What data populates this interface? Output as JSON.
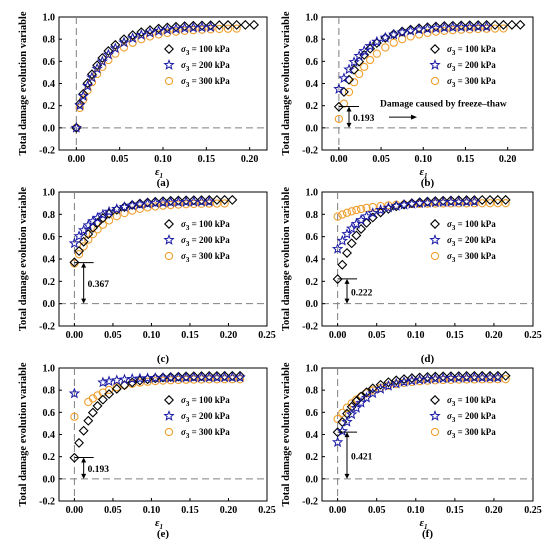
{
  "colors": {
    "s100": "#000000",
    "s200": "#1a1aa6",
    "s300": "#f0a030",
    "axis": "#000000",
    "dash": "#808080"
  },
  "chart_data": [
    {
      "type": "scatter",
      "panel_label": "(a)",
      "xlabel": "ε1",
      "ylabel": "Total damage evolution variable",
      "xlim": [
        -0.02,
        0.22
      ],
      "ylim": [
        -0.2,
        1.0
      ],
      "xticks": [
        "0.00",
        "0.05",
        "0.10",
        "0.15",
        "0.20"
      ],
      "yticks": [
        "-0.2",
        "0.0",
        "0.2",
        "0.4",
        "0.6",
        "0.8",
        "1.0"
      ],
      "legend": [
        "σ3 = 100 kPa",
        "σ3 = 200 kPa",
        "σ3 = 300 kPa"
      ],
      "legend_position": "center-right",
      "annotation": null,
      "series": [
        {
          "name": "σ3 = 100 kPa",
          "marker": "diamond",
          "start": 0.0,
          "x": [
            0,
            0.004,
            0.008,
            0.013,
            0.018,
            0.024,
            0.03,
            0.037,
            0.045,
            0.055,
            0.065,
            0.075,
            0.085,
            0.095,
            0.105,
            0.115,
            0.125,
            0.135,
            0.145,
            0.155,
            0.165,
            0.175,
            0.185,
            0.195,
            0.205
          ]
        },
        {
          "name": "σ3 = 200 kPa",
          "marker": "star",
          "start": 0.0,
          "x": [
            0,
            0.004,
            0.008,
            0.013,
            0.018,
            0.024,
            0.03,
            0.037,
            0.045,
            0.055,
            0.065,
            0.075,
            0.085,
            0.095,
            0.105,
            0.115,
            0.125,
            0.135,
            0.145,
            0.155
          ]
        },
        {
          "name": "σ3 = 300 kPa",
          "marker": "circle",
          "start": 0.0,
          "x": [
            0,
            0.004,
            0.008,
            0.013,
            0.018,
            0.024,
            0.03,
            0.037,
            0.045,
            0.055,
            0.065,
            0.075,
            0.085,
            0.095,
            0.105,
            0.115,
            0.125,
            0.135,
            0.145,
            0.155,
            0.165,
            0.175,
            0.185
          ]
        }
      ]
    },
    {
      "type": "scatter",
      "panel_label": "(b)",
      "xlabel": "ε1",
      "ylabel": "Total damage evolution variable",
      "xlim": [
        -0.02,
        0.23
      ],
      "ylim": [
        -0.2,
        1.0
      ],
      "xticks": [
        "0.00",
        "0.05",
        "0.10",
        "0.15",
        "0.20"
      ],
      "yticks": [
        "-0.2",
        "0.0",
        "0.2",
        "0.4",
        "0.6",
        "0.8",
        "1.0"
      ],
      "legend": [
        "σ3 = 100 kPa",
        "σ3 = 200 kPa",
        "σ3 = 300 kPa"
      ],
      "legend_position": "center-right",
      "annotation": {
        "value_label": "0.193",
        "text": "Damage caused by freeze–thaw"
      },
      "series": [
        {
          "name": "σ3 = 100 kPa",
          "marker": "diamond",
          "start": 0.19,
          "x": [
            0,
            0.006,
            0.012,
            0.018,
            0.024,
            0.03,
            0.037,
            0.045,
            0.055,
            0.065,
            0.075,
            0.085,
            0.095,
            0.105,
            0.115,
            0.125,
            0.135,
            0.145,
            0.155,
            0.165,
            0.175,
            0.185,
            0.195,
            0.205,
            0.215
          ]
        },
        {
          "name": "σ3 = 200 kPa",
          "marker": "star",
          "start": 0.35,
          "x": [
            0,
            0.006,
            0.012,
            0.018,
            0.024,
            0.03,
            0.037,
            0.045,
            0.055,
            0.065,
            0.075,
            0.085,
            0.095,
            0.105,
            0.115,
            0.125,
            0.135,
            0.145,
            0.155,
            0.165,
            0.175
          ]
        },
        {
          "name": "σ3 = 300 kPa",
          "marker": "circle",
          "start": 0.08,
          "x": [
            0,
            0.006,
            0.012,
            0.018,
            0.024,
            0.03,
            0.037,
            0.045,
            0.055,
            0.065,
            0.075,
            0.085,
            0.095,
            0.105,
            0.115,
            0.125,
            0.135,
            0.145,
            0.155,
            0.165,
            0.175,
            0.185,
            0.195
          ]
        }
      ]
    },
    {
      "type": "scatter",
      "panel_label": "(c)",
      "xlabel": "",
      "ylabel": "Total damage evolution variable",
      "xlim": [
        -0.02,
        0.25
      ],
      "ylim": [
        -0.2,
        1.0
      ],
      "xticks": [
        "0.00",
        "0.05",
        "0.10",
        "0.15",
        "0.20",
        "0.25"
      ],
      "yticks": [
        "-0.2",
        "0.0",
        "0.2",
        "0.4",
        "0.6",
        "0.8",
        "1.0"
      ],
      "legend": [
        "σ3 = 100 kPa",
        "σ3 = 200 kPa",
        "σ3 = 300 kPa"
      ],
      "legend_position": "center-right",
      "annotation": {
        "value_label": "0.367",
        "text": ""
      },
      "series": [
        {
          "name": "σ3 = 100 kPa",
          "marker": "diamond",
          "start": 0.37,
          "x": [
            0,
            0.006,
            0.012,
            0.018,
            0.024,
            0.03,
            0.037,
            0.045,
            0.055,
            0.065,
            0.075,
            0.085,
            0.095,
            0.105,
            0.115,
            0.125,
            0.135,
            0.145,
            0.155,
            0.165,
            0.175,
            0.185,
            0.195,
            0.205
          ]
        },
        {
          "name": "σ3 = 200 kPa",
          "marker": "star",
          "start": 0.54,
          "x": [
            0,
            0.006,
            0.012,
            0.018,
            0.024,
            0.03,
            0.037,
            0.045,
            0.055,
            0.065,
            0.075,
            0.085,
            0.095,
            0.105,
            0.115,
            0.125,
            0.135,
            0.145,
            0.155,
            0.165,
            0.175
          ]
        },
        {
          "name": "σ3 = 300 kPa",
          "marker": "circle",
          "start": 0.36,
          "x": [
            0,
            0.006,
            0.012,
            0.018,
            0.024,
            0.03,
            0.037,
            0.045,
            0.055,
            0.065,
            0.075,
            0.085,
            0.095,
            0.105,
            0.115,
            0.125,
            0.135,
            0.145,
            0.155,
            0.165,
            0.175,
            0.185,
            0.195
          ]
        }
      ]
    },
    {
      "type": "scatter",
      "panel_label": "(d)",
      "xlabel": "",
      "ylabel": "Total damage evolution variable",
      "xlim": [
        -0.02,
        0.25
      ],
      "ylim": [
        -0.2,
        1.0
      ],
      "xticks": [
        "0.00",
        "0.05",
        "0.10",
        "0.15",
        "0.20",
        "0.25"
      ],
      "yticks": [
        "-0.2",
        "0.0",
        "0.2",
        "0.4",
        "0.6",
        "0.8",
        "1.0"
      ],
      "legend": [
        "σ3 = 100 kPa",
        "σ3 = 200 kPa",
        "σ3 = 300 kPa"
      ],
      "legend_position": "center-right",
      "annotation": {
        "value_label": "0.222",
        "text": ""
      },
      "series": [
        {
          "name": "σ3 = 100 kPa",
          "marker": "diamond",
          "start": 0.22,
          "x": [
            0,
            0.006,
            0.012,
            0.018,
            0.024,
            0.03,
            0.037,
            0.045,
            0.055,
            0.065,
            0.075,
            0.085,
            0.095,
            0.105,
            0.115,
            0.125,
            0.135,
            0.145,
            0.155,
            0.165,
            0.175,
            0.185,
            0.195,
            0.205,
            0.215
          ]
        },
        {
          "name": "σ3 = 200 kPa",
          "marker": "star",
          "start": 0.49,
          "x": [
            0,
            0.006,
            0.012,
            0.018,
            0.024,
            0.03,
            0.037,
            0.045,
            0.055,
            0.065,
            0.075,
            0.085,
            0.095,
            0.105,
            0.115,
            0.125,
            0.135,
            0.145,
            0.155,
            0.165,
            0.175
          ]
        },
        {
          "name": "σ3 = 300 kPa",
          "marker": "circle",
          "start": 0.78,
          "x": [
            0,
            0.006,
            0.012,
            0.018,
            0.024,
            0.03,
            0.037,
            0.045,
            0.055,
            0.065,
            0.075,
            0.085,
            0.095,
            0.105,
            0.115,
            0.125,
            0.135,
            0.145,
            0.155,
            0.165,
            0.175,
            0.185,
            0.195,
            0.205,
            0.215
          ]
        }
      ]
    },
    {
      "type": "scatter",
      "panel_label": "(e)",
      "xlabel": "ε1",
      "ylabel": "Total damage evolution variable",
      "xlim": [
        -0.02,
        0.25
      ],
      "ylim": [
        -0.2,
        1.0
      ],
      "xticks": [
        "0.00",
        "0.05",
        "0.10",
        "0.15",
        "0.20",
        "0.25"
      ],
      "yticks": [
        "-0.2",
        "0.0",
        "0.2",
        "0.4",
        "0.6",
        "0.8",
        "1.0"
      ],
      "legend": [
        "σ3 = 100 kPa",
        "σ3 = 200 kPa",
        "σ3 = 300 kPa"
      ],
      "legend_position": "center-right",
      "annotation": {
        "value_label": "0.193",
        "text": ""
      },
      "series": [
        {
          "name": "σ3 = 100 kPa",
          "marker": "diamond",
          "start": 0.19,
          "x": [
            0,
            0.006,
            0.012,
            0.018,
            0.024,
            0.03,
            0.037,
            0.045,
            0.055,
            0.065,
            0.075,
            0.085,
            0.095,
            0.105,
            0.115,
            0.125,
            0.135,
            0.145,
            0.155,
            0.165,
            0.175,
            0.185,
            0.195,
            0.205,
            0.215
          ]
        },
        {
          "name": "σ3 = 200 kPa",
          "marker": "star",
          "start": 0.77,
          "x": [
            0,
            0.037,
            0.045,
            0.055,
            0.065,
            0.075,
            0.085,
            0.095,
            0.105,
            0.115,
            0.125,
            0.135,
            0.145,
            0.155,
            0.165,
            0.175,
            0.185,
            0.195,
            0.205,
            0.215
          ]
        },
        {
          "name": "σ3 = 300 kPa",
          "marker": "circle",
          "start": 0.56,
          "x": [
            0,
            0.018,
            0.024,
            0.03,
            0.037,
            0.045,
            0.055,
            0.065,
            0.075,
            0.085,
            0.095,
            0.105,
            0.115,
            0.125,
            0.135,
            0.145,
            0.155,
            0.165,
            0.175,
            0.185,
            0.195,
            0.205,
            0.215
          ]
        }
      ]
    },
    {
      "type": "scatter",
      "panel_label": "(f)",
      "xlabel": "ε1",
      "ylabel": "Total damage evolution variable",
      "xlim": [
        -0.02,
        0.25
      ],
      "ylim": [
        -0.2,
        1.0
      ],
      "xticks": [
        "0.00",
        "0.05",
        "0.10",
        "0.15",
        "0.20",
        "0.25"
      ],
      "yticks": [
        "-0.2",
        "0.0",
        "0.2",
        "0.4",
        "0.6",
        "0.8",
        "1.0"
      ],
      "legend": [
        "σ3 = 100 kPa",
        "σ3 = 200 kPa",
        "σ3 = 300 kPa"
      ],
      "legend_position": "center-right",
      "annotation": {
        "value_label": "0.421",
        "text": ""
      },
      "series": [
        {
          "name": "σ3 = 100 kPa",
          "marker": "diamond",
          "start": 0.42,
          "x": [
            0,
            0.006,
            0.012,
            0.018,
            0.024,
            0.03,
            0.037,
            0.045,
            0.055,
            0.065,
            0.075,
            0.085,
            0.095,
            0.105,
            0.115,
            0.125,
            0.135,
            0.145,
            0.155,
            0.165,
            0.175,
            0.185,
            0.195,
            0.205,
            0.215
          ]
        },
        {
          "name": "σ3 = 200 kPa",
          "marker": "star",
          "start": 0.33,
          "x": [
            0,
            0.006,
            0.012,
            0.018,
            0.024,
            0.03,
            0.037,
            0.045,
            0.055,
            0.065,
            0.075,
            0.085,
            0.095,
            0.105,
            0.115,
            0.125,
            0.135,
            0.145,
            0.155,
            0.165,
            0.175,
            0.185,
            0.195,
            0.205
          ]
        },
        {
          "name": "σ3 = 300 kPa",
          "marker": "circle",
          "start": 0.54,
          "x": [
            0,
            0.006,
            0.012,
            0.018,
            0.024,
            0.03,
            0.037,
            0.045,
            0.055,
            0.065,
            0.075,
            0.085,
            0.095,
            0.105,
            0.115,
            0.125,
            0.135,
            0.145,
            0.155,
            0.165,
            0.175,
            0.185,
            0.195,
            0.205,
            0.215
          ]
        }
      ]
    }
  ]
}
